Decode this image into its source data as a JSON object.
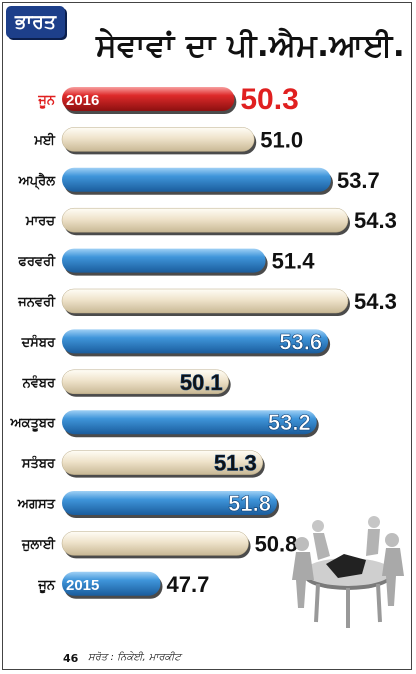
{
  "header": {
    "section_tag": "ਭਾਰਤ",
    "title": "ਸੇਵਾਵਾਂ ਦਾ ਪੀ.ਐਮ.ਆਈ."
  },
  "footer": {
    "page_number": "46",
    "source": "ਸਰੋਤ : ਨਿਕੇਈ, ਮਾਰਕੀਟ"
  },
  "chart_data": {
    "type": "bar",
    "orientation": "horizontal",
    "title": "ਸੇਵਾਵਾਂ ਦਾ ਪੀ.ਐਮ.ਆਈ.",
    "categories": [
      "ਜੂਨ",
      "ਮਈ",
      "ਅਪ੍ਰੈਲ",
      "ਮਾਰਚ",
      "ਫਰਵਰੀ",
      "ਜਨਵਰੀ",
      "ਦਸੰਬਰ",
      "ਨਵੰਬਰ",
      "ਅਕਤੂਬਰ",
      "ਸਤੰਬਰ",
      "ਅਗਸਤ",
      "ਜੁਲਾਈ",
      "ਜੂਨ"
    ],
    "values": [
      50.3,
      51.0,
      53.7,
      54.3,
      51.4,
      54.3,
      53.6,
      50.1,
      53.2,
      51.3,
      51.8,
      50.8,
      47.7
    ],
    "value_labels": [
      "50.3",
      "51.0",
      "53.7",
      "54.3",
      "51.4",
      "54.3",
      "53.6",
      "50.1",
      "53.2",
      "51.3",
      "51.8",
      "50.8",
      "47.7"
    ],
    "year_labels": [
      "2016",
      "",
      "",
      "",
      "",
      "",
      "",
      "",
      "",
      "",
      "",
      "",
      "2015"
    ],
    "bar_styles": [
      "red",
      "cream",
      "blue",
      "cream",
      "blue",
      "cream",
      "blue",
      "cream",
      "blue",
      "cream",
      "blue",
      "cream",
      "blue"
    ],
    "value_label_position": [
      "outside",
      "outside",
      "outside",
      "outside",
      "outside",
      "outside",
      "inside",
      "inside",
      "inside",
      "inside",
      "inside",
      "outside",
      "outside"
    ],
    "category_colors": [
      "#e02020",
      "#111111",
      "#111111",
      "#111111",
      "#111111",
      "#111111",
      "#111111",
      "#111111",
      "#111111",
      "#111111",
      "#111111",
      "#111111",
      "#111111"
    ],
    "value_label_colors": [
      "#e02020",
      "#111111",
      "#111111",
      "#111111",
      "#111111",
      "#111111",
      "#ffffff",
      "#111111",
      "#ffffff",
      "#111111",
      "#ffffff",
      "#111111",
      "#111111"
    ],
    "grid": false,
    "legend": "none"
  },
  "colors": {
    "blue": "#2f7fc4",
    "cream": "#e9dcc2",
    "red": "#d21f1f",
    "header": "#1d3f8a"
  }
}
